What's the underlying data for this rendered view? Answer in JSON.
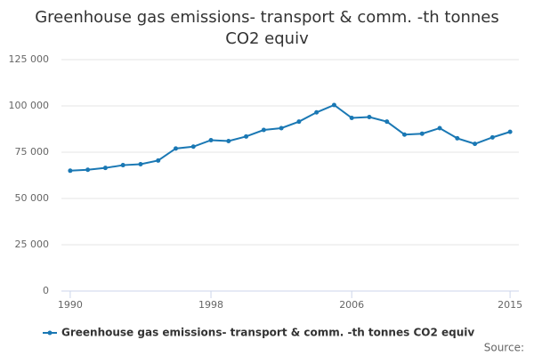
{
  "chart_data": {
    "type": "line",
    "title": "Greenhouse gas emissions- transport & comm. -th tonnes CO2 equiv",
    "x": [
      1990,
      1991,
      1992,
      1993,
      1994,
      1995,
      1996,
      1997,
      1998,
      1999,
      2000,
      2001,
      2002,
      2003,
      2004,
      2005,
      2006,
      2007,
      2008,
      2009,
      2010,
      2011,
      2012,
      2013,
      2014,
      2015
    ],
    "series": [
      {
        "name": "Greenhouse gas emissions- transport & comm. -th tonnes CO2 equiv",
        "color": "#1a78b4",
        "values": [
          65000,
          65500,
          66500,
          68000,
          68500,
          70500,
          77000,
          78000,
          81500,
          81000,
          83500,
          87000,
          88000,
          91500,
          96500,
          100500,
          93500,
          94000,
          91500,
          84500,
          85000,
          88000,
          82500,
          79500,
          83000,
          86000
        ]
      }
    ],
    "xlim": [
      1989.5,
      2015.5
    ],
    "xticks": [
      1990,
      1998,
      2006,
      2015
    ],
    "ylim": [
      0,
      125000
    ],
    "yticks": [
      0,
      {
        "value": 25000,
        "label": "25 000"
      },
      {
        "value": 50000,
        "label": "50 000"
      },
      {
        "value": 75000,
        "label": "75 000"
      },
      {
        "value": 100000,
        "label": "100 000"
      },
      {
        "value": 125000,
        "label": "125 000"
      }
    ],
    "grid": true,
    "source": "Source:"
  }
}
